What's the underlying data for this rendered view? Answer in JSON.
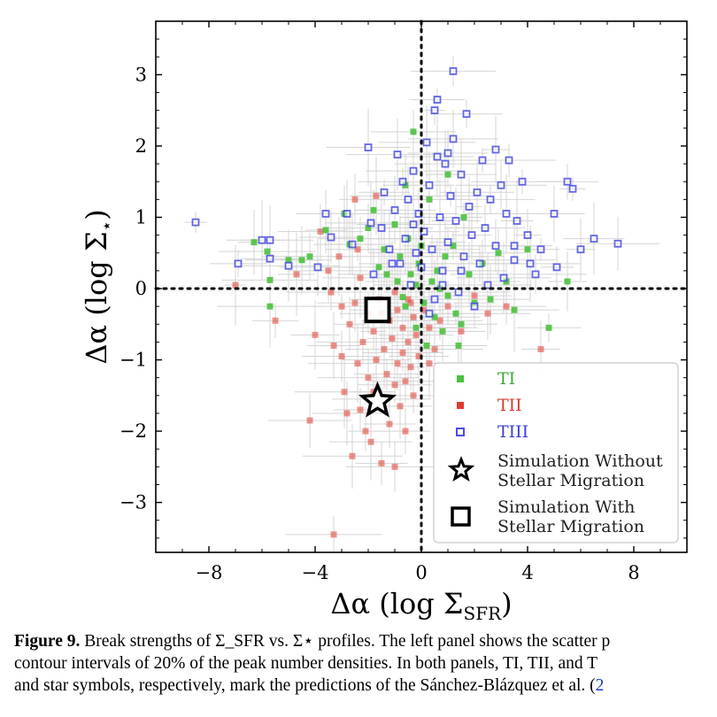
{
  "chart_data": {
    "type": "scatter",
    "xlabel": "Δα (log Σ_SFR)",
    "ylabel": "Δα (log Σ⋆)",
    "xlim": [
      -10,
      10
    ],
    "ylim": [
      -3.7,
      3.75
    ],
    "x_ticks": [
      -8,
      -4,
      0,
      4,
      8
    ],
    "y_ticks": [
      -3,
      -2,
      -1,
      0,
      1,
      2,
      3
    ],
    "x_tick_labels": [
      "−8",
      "−4",
      "0",
      "4",
      "8"
    ],
    "y_tick_labels": [
      "−3",
      "−2",
      "−1",
      "0",
      "1",
      "2",
      "3"
    ],
    "reference_lines": {
      "x": 0,
      "y": 0,
      "style": "dotted"
    },
    "legend_position": "lower-right",
    "grid": false,
    "series": [
      {
        "name": "TI",
        "marker": "filled-square",
        "color": "#4cc13f",
        "points": [
          [
            -6.3,
            0.65
          ],
          [
            -5.8,
            0.52
          ],
          [
            -5.7,
            0.12
          ],
          [
            -5.7,
            -0.25
          ],
          [
            -5.0,
            0.4
          ],
          [
            -4.5,
            0.4
          ],
          [
            -4.2,
            0.45
          ],
          [
            -3.6,
            0.82
          ],
          [
            -2.9,
            1.05
          ],
          [
            -2.7,
            0.62
          ],
          [
            -2.3,
            0.7
          ],
          [
            -2.0,
            0.85
          ],
          [
            -1.8,
            1.1
          ],
          [
            -1.6,
            0.3
          ],
          [
            -1.4,
            0.55
          ],
          [
            -1.3,
            0.2
          ],
          [
            -1.0,
            0.9
          ],
          [
            -0.9,
            0.1
          ],
          [
            -0.8,
            0.45
          ],
          [
            -0.7,
            -0.12
          ],
          [
            -0.6,
            -0.25
          ],
          [
            -0.5,
            0.7
          ],
          [
            -0.4,
            0.2
          ],
          [
            -0.3,
            2.2
          ],
          [
            -0.2,
            0.05
          ],
          [
            -0.1,
            0.35
          ],
          [
            0.0,
            0.6
          ],
          [
            0.1,
            -0.2
          ],
          [
            0.3,
            1.25
          ],
          [
            0.4,
            0.1
          ],
          [
            0.5,
            -0.4
          ],
          [
            0.6,
            0.25
          ],
          [
            0.7,
            0.0
          ],
          [
            0.8,
            -0.6
          ],
          [
            0.9,
            0.45
          ],
          [
            1.0,
            -0.1
          ],
          [
            1.2,
            0.6
          ],
          [
            1.3,
            -0.35
          ],
          [
            1.5,
            -0.5
          ],
          [
            1.6,
            1.0
          ],
          [
            1.8,
            0.2
          ],
          [
            2.0,
            -0.2
          ],
          [
            2.3,
            0.35
          ],
          [
            2.6,
            -0.15
          ],
          [
            2.9,
            0.5
          ],
          [
            3.2,
            0.1
          ],
          [
            3.5,
            -0.3
          ],
          [
            4.0,
            0.55
          ],
          [
            4.8,
            -0.55
          ],
          [
            5.5,
            0.1
          ],
          [
            1.0,
            1.6
          ],
          [
            -0.6,
            1.45
          ],
          [
            0.2,
            -0.8
          ],
          [
            -0.2,
            -0.55
          ],
          [
            1.4,
            -0.8
          ]
        ]
      },
      {
        "name": "TII",
        "marker": "filled-square",
        "color": "#e03b2f",
        "points": [
          [
            -7.0,
            0.05
          ],
          [
            -5.5,
            -0.45
          ],
          [
            -4.2,
            -1.85
          ],
          [
            -4.0,
            -0.65
          ],
          [
            -3.8,
            0.8
          ],
          [
            -3.5,
            0.25
          ],
          [
            -3.4,
            -0.05
          ],
          [
            -3.3,
            -0.8
          ],
          [
            -3.0,
            -0.25
          ],
          [
            -3.0,
            -0.95
          ],
          [
            -2.9,
            -1.45
          ],
          [
            -2.7,
            -0.5
          ],
          [
            -2.6,
            -2.35
          ],
          [
            -2.5,
            -0.2
          ],
          [
            -2.4,
            -1.05
          ],
          [
            -2.3,
            -1.7
          ],
          [
            -2.2,
            -0.75
          ],
          [
            -2.1,
            -2.0
          ],
          [
            -2.0,
            -0.35
          ],
          [
            -2.0,
            -1.25
          ],
          [
            -1.9,
            -2.15
          ],
          [
            -1.8,
            -0.6
          ],
          [
            -1.7,
            -1.0
          ],
          [
            -1.6,
            -0.15
          ],
          [
            -1.5,
            -1.55
          ],
          [
            -1.5,
            -2.45
          ],
          [
            -1.4,
            -0.85
          ],
          [
            -1.3,
            -1.2
          ],
          [
            -1.2,
            -0.45
          ],
          [
            -1.2,
            -1.9
          ],
          [
            -1.1,
            -0.7
          ],
          [
            -1.0,
            -1.35
          ],
          [
            -1.0,
            -2.5
          ],
          [
            -0.9,
            -0.3
          ],
          [
            -0.9,
            -1.05
          ],
          [
            -0.8,
            -1.65
          ],
          [
            -0.7,
            -0.55
          ],
          [
            -0.7,
            -0.9
          ],
          [
            -0.6,
            -1.3
          ],
          [
            -0.6,
            -2.0
          ],
          [
            -0.5,
            -0.15
          ],
          [
            -0.5,
            -0.75
          ],
          [
            -0.4,
            -1.1
          ],
          [
            -0.3,
            -0.4
          ],
          [
            -0.3,
            -1.5
          ],
          [
            -0.2,
            -0.65
          ],
          [
            -0.1,
            -0.95
          ],
          [
            0.1,
            -0.3
          ],
          [
            0.3,
            -0.55
          ],
          [
            0.5,
            -0.85
          ],
          [
            0.7,
            -0.45
          ],
          [
            1.0,
            -0.25
          ],
          [
            1.5,
            -0.6
          ],
          [
            2.0,
            -0.1
          ],
          [
            2.5,
            -0.35
          ],
          [
            3.2,
            -0.25
          ],
          [
            -3.3,
            -3.45
          ],
          [
            -1.7,
            1.3
          ],
          [
            -2.5,
            1.25
          ],
          [
            -3.1,
            0.45
          ],
          [
            -2.3,
            0.15
          ],
          [
            -1.0,
            -0.05
          ],
          [
            -4.7,
            0.2
          ],
          [
            -2.8,
            -1.75
          ],
          [
            -1.8,
            -1.45
          ],
          [
            4.5,
            -0.85
          ],
          [
            0.3,
            -1.05
          ],
          [
            -0.4,
            -0.2
          ],
          [
            -2.4,
            0.55
          ],
          [
            -1.5,
            -0.35
          ]
        ]
      },
      {
        "name": "TIII",
        "marker": "open-square",
        "color": "#4a4de0",
        "points": [
          [
            -8.5,
            0.93
          ],
          [
            -6.9,
            0.35
          ],
          [
            -6.0,
            0.68
          ],
          [
            -5.7,
            0.68
          ],
          [
            -5.7,
            0.42
          ],
          [
            -5.0,
            0.32
          ],
          [
            -3.9,
            0.3
          ],
          [
            -3.6,
            1.05
          ],
          [
            -3.4,
            0.72
          ],
          [
            -2.8,
            1.05
          ],
          [
            -2.6,
            0.62
          ],
          [
            -2.0,
            1.98
          ],
          [
            -1.9,
            0.92
          ],
          [
            -1.8,
            0.2
          ],
          [
            -1.5,
            0.85
          ],
          [
            -1.4,
            1.35
          ],
          [
            -1.2,
            0.55
          ],
          [
            -1.0,
            1.1
          ],
          [
            -0.9,
            1.88
          ],
          [
            -0.8,
            0.35
          ],
          [
            -0.7,
            1.5
          ],
          [
            -0.6,
            0.7
          ],
          [
            -0.5,
            1.25
          ],
          [
            -0.4,
            0.05
          ],
          [
            -0.3,
            1.65
          ],
          [
            -0.2,
            0.5
          ],
          [
            -0.1,
            1.05
          ],
          [
            0.0,
            0.3
          ],
          [
            0.1,
            0.8
          ],
          [
            0.2,
            2.05
          ],
          [
            0.3,
            1.45
          ],
          [
            0.4,
            0.55
          ],
          [
            0.5,
            -0.15
          ],
          [
            0.5,
            2.5
          ],
          [
            0.6,
            2.65
          ],
          [
            0.7,
            1.0
          ],
          [
            0.8,
            0.25
          ],
          [
            0.9,
            1.75
          ],
          [
            1.0,
            0.65
          ],
          [
            1.1,
            1.3
          ],
          [
            1.2,
            2.1
          ],
          [
            1.2,
            3.05
          ],
          [
            1.3,
            0.95
          ],
          [
            1.4,
            -0.05
          ],
          [
            1.5,
            1.6
          ],
          [
            1.6,
            0.45
          ],
          [
            1.7,
            2.45
          ],
          [
            1.8,
            1.15
          ],
          [
            1.9,
            0.75
          ],
          [
            2.0,
            -0.25
          ],
          [
            2.1,
            1.35
          ],
          [
            2.2,
            0.35
          ],
          [
            2.3,
            1.8
          ],
          [
            2.4,
            0.85
          ],
          [
            2.5,
            0.05
          ],
          [
            2.6,
            1.25
          ],
          [
            2.8,
            0.6
          ],
          [
            3.0,
            1.45
          ],
          [
            3.1,
            0.15
          ],
          [
            3.2,
            1.05
          ],
          [
            3.3,
            1.8
          ],
          [
            3.5,
            0.4
          ],
          [
            3.6,
            0.95
          ],
          [
            3.8,
            1.5
          ],
          [
            4.0,
            0.75
          ],
          [
            4.1,
            0.35
          ],
          [
            4.3,
            0.2
          ],
          [
            4.5,
            0.55
          ],
          [
            5.0,
            1.05
          ],
          [
            5.1,
            0.3
          ],
          [
            5.5,
            1.5
          ],
          [
            5.7,
            1.4
          ],
          [
            6.0,
            0.55
          ],
          [
            6.5,
            0.7
          ],
          [
            7.4,
            0.63
          ],
          [
            1.0,
            1.9
          ],
          [
            0.6,
            1.85
          ],
          [
            -0.3,
            0.9
          ],
          [
            0.8,
            0.05
          ],
          [
            1.5,
            0.25
          ],
          [
            2.8,
            1.95
          ],
          [
            3.5,
            0.6
          ],
          [
            -1.1,
            0.35
          ],
          [
            0.3,
            -0.35
          ]
        ]
      }
    ],
    "annotations": [
      {
        "name": "Simulation Without Stellar Migration",
        "marker": "star",
        "x": -1.65,
        "y": -1.58
      },
      {
        "name": "Simulation With Stellar Migration",
        "marker": "open-square",
        "x": -1.65,
        "y": -0.3
      }
    ]
  },
  "legend": {
    "items": [
      {
        "label": "TI",
        "color": "#3aa83a"
      },
      {
        "label": "TII",
        "color": "#d63a30"
      },
      {
        "label": "TIII",
        "color": "#3b3fd6"
      },
      {
        "label_line1": "Simulation Without",
        "label_line2": "Stellar Migration"
      },
      {
        "label_line1": "Simulation With",
        "label_line2": "Stellar Migration"
      }
    ]
  },
  "caption": {
    "lead": "Figure 9.",
    "line1": " Break strengths of Σ_SFR vs. Σ⋆ profiles. The left panel shows the scatter p",
    "line2": "contour intervals of 20% of the peak number densities. In both panels, TI, TII, and T",
    "line3": "and star symbols, respectively, mark the predictions of the Sánchez-Blázquez et al. (",
    "line3_link": "2"
  }
}
